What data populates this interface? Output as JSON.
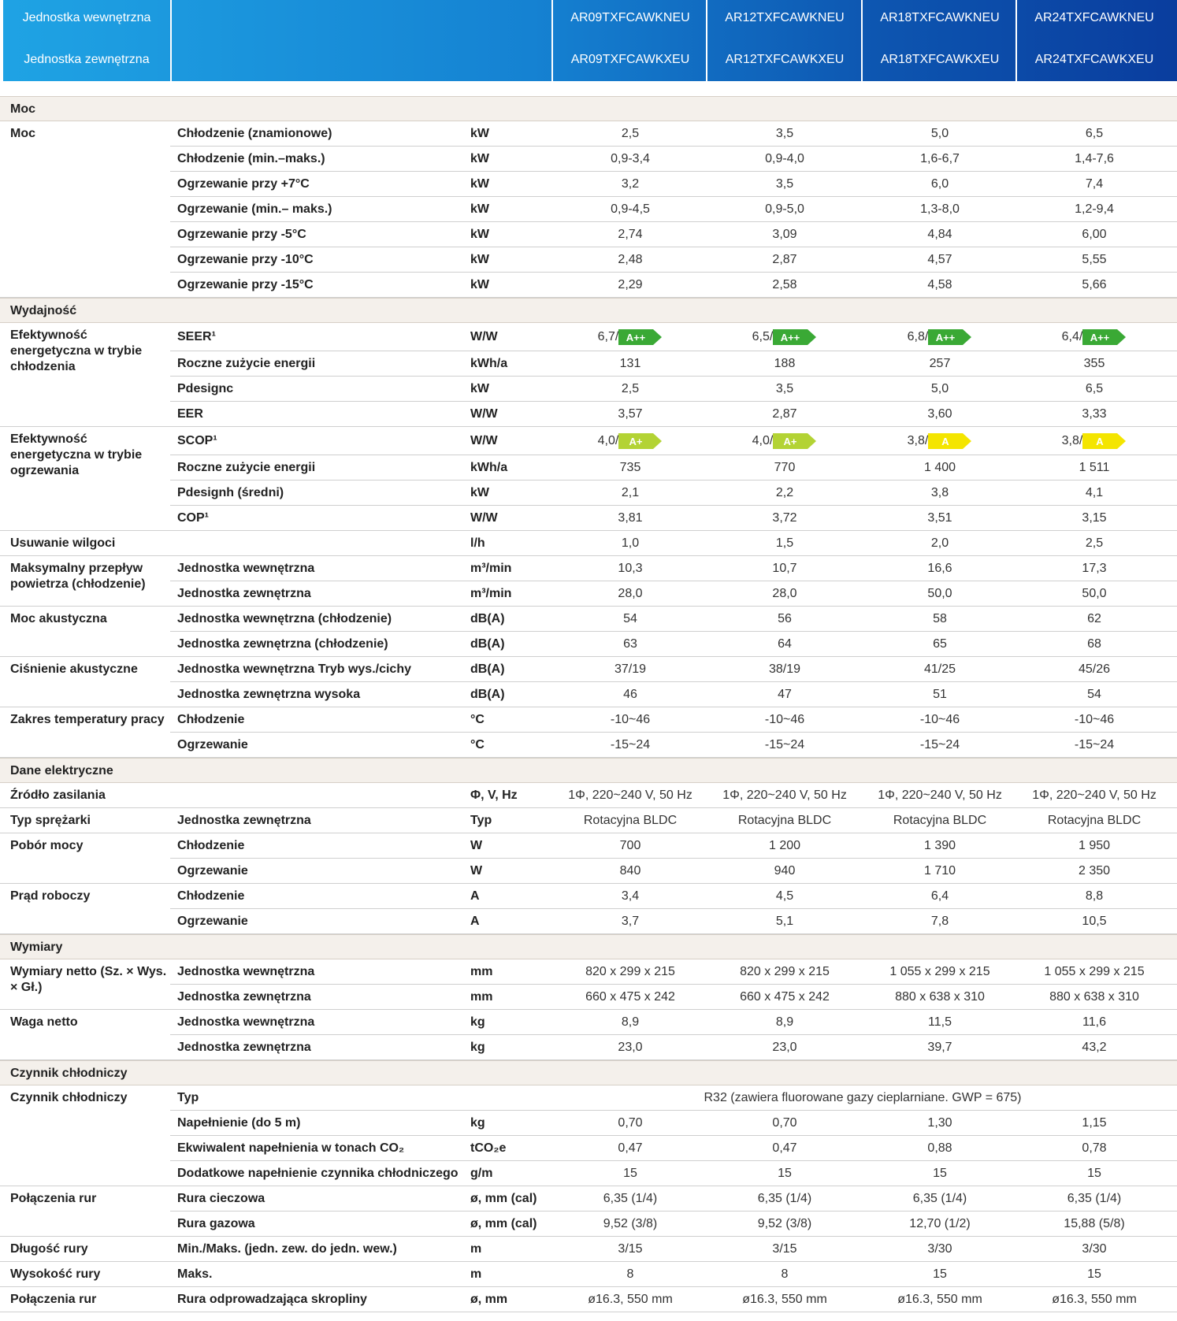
{
  "header": {
    "indoor_label": "Jednostka wewnętrzna",
    "outdoor_label": "Jednostka zewnętrzna",
    "models": [
      {
        "indoor": "AR09TXFCAWKNEU",
        "outdoor": "AR09TXFCAWKXEU"
      },
      {
        "indoor": "AR12TXFCAWKNEU",
        "outdoor": "AR12TXFCAWKXEU"
      },
      {
        "indoor": "AR18TXFCAWKNEU",
        "outdoor": "AR18TXFCAWKXEU"
      },
      {
        "indoor": "AR24TXFCAWKNEU",
        "outdoor": "AR24TXFCAWKXEU"
      }
    ]
  },
  "sections": [
    {
      "title": "Moc",
      "groups": [
        {
          "label": "Moc",
          "rows": [
            {
              "param": "Chłodzenie (znamionowe)",
              "unit": "kW",
              "values": [
                "2,5",
                "3,5",
                "5,0",
                "6,5"
              ]
            },
            {
              "param": "Chłodzenie (min.–maks.)",
              "unit": "kW",
              "values": [
                "0,9-3,4",
                "0,9-4,0",
                "1,6-6,7",
                "1,4-7,6"
              ]
            },
            {
              "param": "Ogrzewanie przy +7°C",
              "unit": "kW",
              "values": [
                "3,2",
                "3,5",
                "6,0",
                "7,4"
              ]
            },
            {
              "param": "Ogrzewanie (min.– maks.)",
              "unit": "kW",
              "values": [
                "0,9-4,5",
                "0,9-5,0",
                "1,3-8,0",
                "1,2-9,4"
              ]
            },
            {
              "param": "Ogrzewanie przy -5°C",
              "unit": "kW",
              "values": [
                "2,74",
                "3,09",
                "4,84",
                "6,00"
              ]
            },
            {
              "param": "Ogrzewanie przy -10°C",
              "unit": "kW",
              "values": [
                "2,48",
                "2,87",
                "4,57",
                "5,55"
              ]
            },
            {
              "param": "Ogrzewanie przy -15°C",
              "unit": "kW",
              "values": [
                "2,29",
                "2,58",
                "4,58",
                "5,66"
              ]
            }
          ]
        }
      ]
    },
    {
      "title": "Wydajność",
      "groups": [
        {
          "label": "Efektywność energetyczna w trybie chłodzenia",
          "rows": [
            {
              "param": "SEER¹",
              "unit": "W/W",
              "values": [
                "6,7/",
                "6,5/",
                "6,8/",
                "6,4/"
              ],
              "classes": [
                "A++",
                "A++",
                "A++",
                "A++"
              ],
              "class_colors": [
                "#3aa935",
                "#3aa935",
                "#3aa935",
                "#3aa935"
              ]
            },
            {
              "param": "Roczne zużycie energii",
              "unit": "kWh/a",
              "values": [
                "131",
                "188",
                "257",
                "355"
              ]
            },
            {
              "param": "Pdesignc",
              "unit": "kW",
              "values": [
                "2,5",
                "3,5",
                "5,0",
                "6,5"
              ]
            },
            {
              "param": "EER",
              "unit": "W/W",
              "values": [
                "3,57",
                "2,87",
                "3,60",
                "3,33"
              ]
            }
          ]
        },
        {
          "label": "Efektywność energetyczna w trybie ogrzewania",
          "rows": [
            {
              "param": "SCOP¹",
              "unit": "W/W",
              "values": [
                "4,0/",
                "4,0/",
                "3,8/",
                "3,8/"
              ],
              "classes": [
                "A+",
                "A+",
                "A",
                "A"
              ],
              "class_colors": [
                "#b3d334",
                "#b3d334",
                "#f4e500",
                "#f4e500"
              ]
            },
            {
              "param": "Roczne zużycie energii",
              "unit": "kWh/a",
              "values": [
                "735",
                "770",
                "1 400",
                "1 511"
              ]
            },
            {
              "param": "Pdesignh (średni)",
              "unit": "kW",
              "values": [
                "2,1",
                "2,2",
                "3,8",
                "4,1"
              ]
            },
            {
              "param": "COP¹",
              "unit": "W/W",
              "values": [
                "3,81",
                "3,72",
                "3,51",
                "3,15"
              ]
            }
          ]
        },
        {
          "label": "Usuwanie wilgoci",
          "rows": [
            {
              "unit": "l/h",
              "values": [
                "1,0",
                "1,5",
                "2,0",
                "2,5"
              ]
            }
          ]
        },
        {
          "label": "Maksymalny przepływ powietrza (chłodzenie)",
          "rows": [
            {
              "param": "Jednostka wewnętrzna",
              "unit": "m³/min",
              "values": [
                "10,3",
                "10,7",
                "16,6",
                "17,3"
              ]
            },
            {
              "param": "Jednostka zewnętrzna",
              "unit": "m³/min",
              "values": [
                "28,0",
                "28,0",
                "50,0",
                "50,0"
              ]
            }
          ]
        },
        {
          "label": "Moc akustyczna",
          "rows": [
            {
              "param": "Jednostka wewnętrzna (chłodzenie)",
              "unit": "dB(A)",
              "values": [
                "54",
                "56",
                "58",
                "62"
              ]
            },
            {
              "param": "Jednostka zewnętrzna (chłodzenie)",
              "unit": "dB(A)",
              "values": [
                "63",
                "64",
                "65",
                "68"
              ]
            }
          ]
        },
        {
          "label": "Ciśnienie akustyczne",
          "rows": [
            {
              "param": "Jednostka wewnętrzna Tryb wys./cichy",
              "unit": "dB(A)",
              "values": [
                "37/19",
                "38/19",
                "41/25",
                "45/26"
              ]
            },
            {
              "param": "Jednostka zewnętrzna wysoka",
              "unit": "dB(A)",
              "values": [
                "46",
                "47",
                "51",
                "54"
              ]
            }
          ]
        },
        {
          "label": "Zakres temperatury pracy",
          "rows": [
            {
              "param": "Chłodzenie",
              "unit": "°C",
              "values": [
                "-10~46",
                "-10~46",
                "-10~46",
                "-10~46"
              ]
            },
            {
              "param": "Ogrzewanie",
              "unit": "°C",
              "values": [
                "-15~24",
                "-15~24",
                "-15~24",
                "-15~24"
              ]
            }
          ]
        }
      ]
    },
    {
      "title": "Dane elektryczne",
      "groups": [
        {
          "label": "Źródło zasilania",
          "rows": [
            {
              "unit": "Φ, V, Hz",
              "values": [
                "1Φ, 220~240 V, 50 Hz",
                "1Φ, 220~240 V, 50 Hz",
                "1Φ, 220~240 V, 50 Hz",
                "1Φ, 220~240 V, 50 Hz"
              ]
            }
          ]
        },
        {
          "label": "Typ sprężarki",
          "rows": [
            {
              "param": "Jednostka zewnętrzna",
              "unit": "Typ",
              "values": [
                "Rotacyjna BLDC",
                "Rotacyjna BLDC",
                "Rotacyjna BLDC",
                "Rotacyjna BLDC"
              ]
            }
          ]
        },
        {
          "label": "Pobór mocy",
          "rows": [
            {
              "param": "Chłodzenie",
              "unit": "W",
              "values": [
                "700",
                "1 200",
                "1 390",
                "1 950"
              ]
            },
            {
              "param": "Ogrzewanie",
              "unit": "W",
              "values": [
                "840",
                "940",
                "1 710",
                "2 350"
              ]
            }
          ]
        },
        {
          "label": "Prąd roboczy",
          "rows": [
            {
              "param": "Chłodzenie",
              "unit": "A",
              "values": [
                "3,4",
                "4,5",
                "6,4",
                "8,8"
              ]
            },
            {
              "param": "Ogrzewanie",
              "unit": "A",
              "values": [
                "3,7",
                "5,1",
                "7,8",
                "10,5"
              ]
            }
          ]
        }
      ]
    },
    {
      "title": "Wymiary",
      "groups": [
        {
          "label": "Wymiary netto (Sz. × Wys. × Gł.)",
          "rows": [
            {
              "param": "Jednostka wewnętrzna",
              "unit": "mm",
              "values": [
                "820 x 299 x 215",
                "820 x 299 x 215",
                "1 055 x 299 x 215",
                "1 055 x 299 x 215"
              ]
            },
            {
              "param": "Jednostka zewnętrzna",
              "unit": "mm",
              "values": [
                "660 x 475 x 242",
                "660 x 475 x 242",
                "880 x 638 x 310",
                "880 x 638 x 310"
              ]
            }
          ]
        },
        {
          "label": "Waga netto",
          "rows": [
            {
              "param": "Jednostka wewnętrzna",
              "unit": "kg",
              "values": [
                "8,9",
                "8,9",
                "11,5",
                "11,6"
              ]
            },
            {
              "param": "Jednostka zewnętrzna",
              "unit": "kg",
              "values": [
                "23,0",
                "23,0",
                "39,7",
                "43,2"
              ]
            }
          ]
        }
      ]
    },
    {
      "title": "Czynnik chłodniczy",
      "groups": [
        {
          "label": "Czynnik chłodniczy",
          "rows": [
            {
              "param": "Typ",
              "span": "R32 (zawiera fluorowane gazy cieplarniane. GWP = 675)"
            },
            {
              "param": "Napełnienie (do 5 m)",
              "unit": "kg",
              "values": [
                "0,70",
                "0,70",
                "1,30",
                "1,15"
              ]
            },
            {
              "param": "Ekwiwalent napełnienia w tonach CO₂",
              "unit": "tCO₂e",
              "values": [
                "0,47",
                "0,47",
                "0,88",
                "0,78"
              ]
            },
            {
              "param": "Dodatkowe napełnienie czynnika chłodniczego",
              "unit": "g/m",
              "values": [
                "15",
                "15",
                "15",
                "15"
              ]
            }
          ]
        },
        {
          "label": "Połączenia rur",
          "rows": [
            {
              "param": "Rura cieczowa",
              "unit": "ø, mm (cal)",
              "values": [
                "6,35 (1/4)",
                "6,35 (1/4)",
                "6,35 (1/4)",
                "6,35 (1/4)"
              ]
            },
            {
              "param": "Rura gazowa",
              "unit": "ø, mm (cal)",
              "values": [
                "9,52 (3/8)",
                "9,52 (3/8)",
                "12,70 (1/2)",
                "15,88 (5/8)"
              ]
            }
          ]
        },
        {
          "label": "Długość rury",
          "rows": [
            {
              "param": "Min./Maks. (jedn. zew. do jedn. wew.)",
              "unit": "m",
              "values": [
                "3/15",
                "3/15",
                "3/30",
                "3/30"
              ]
            }
          ]
        },
        {
          "label": "Wysokość rury",
          "rows": [
            {
              "param": "Maks.",
              "unit": "m",
              "values": [
                "8",
                "8",
                "15",
                "15"
              ]
            }
          ]
        },
        {
          "label": "Połączenia rur",
          "rows": [
            {
              "param": "Rura odprowadzająca skropliny",
              "unit": "ø, mm",
              "values": [
                "ø16.3, 550 mm",
                "ø16.3, 550 mm",
                "ø16.3, 550 mm",
                "ø16.3, 550 mm"
              ]
            }
          ]
        }
      ]
    }
  ]
}
